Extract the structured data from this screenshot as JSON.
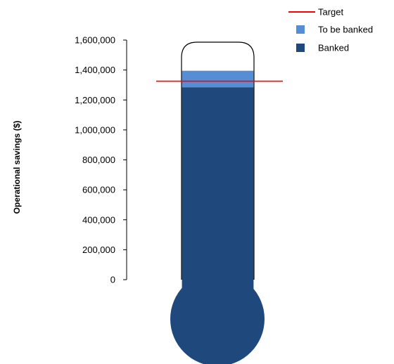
{
  "chart_data": {
    "type": "bar",
    "ylabel": "Operational savings ($)",
    "ylim": [
      0,
      1600000
    ],
    "yticks": [
      0,
      200000,
      400000,
      600000,
      800000,
      1000000,
      1200000,
      1400000,
      1600000
    ],
    "ytick_labels": [
      "0",
      "200,000",
      "400,000",
      "600,000",
      "800,000",
      "1,000,000",
      "1,200,000",
      "1,400,000",
      "1,600,000"
    ],
    "series": [
      {
        "name": "Banked",
        "value": 1285000,
        "color": "#1f497d"
      },
      {
        "name": "To be banked",
        "value": 110000,
        "color": "#558ed5"
      }
    ],
    "target": {
      "name": "Target",
      "value": 1325000,
      "color": "#ff0000"
    },
    "legend_position": "top-right",
    "legend": [
      {
        "name": "Target",
        "kind": "line",
        "color": "#ff0000"
      },
      {
        "name": "To be banked",
        "kind": "square",
        "color": "#558ed5"
      },
      {
        "name": "Banked",
        "kind": "square",
        "color": "#1f497d"
      }
    ],
    "grid": false
  }
}
